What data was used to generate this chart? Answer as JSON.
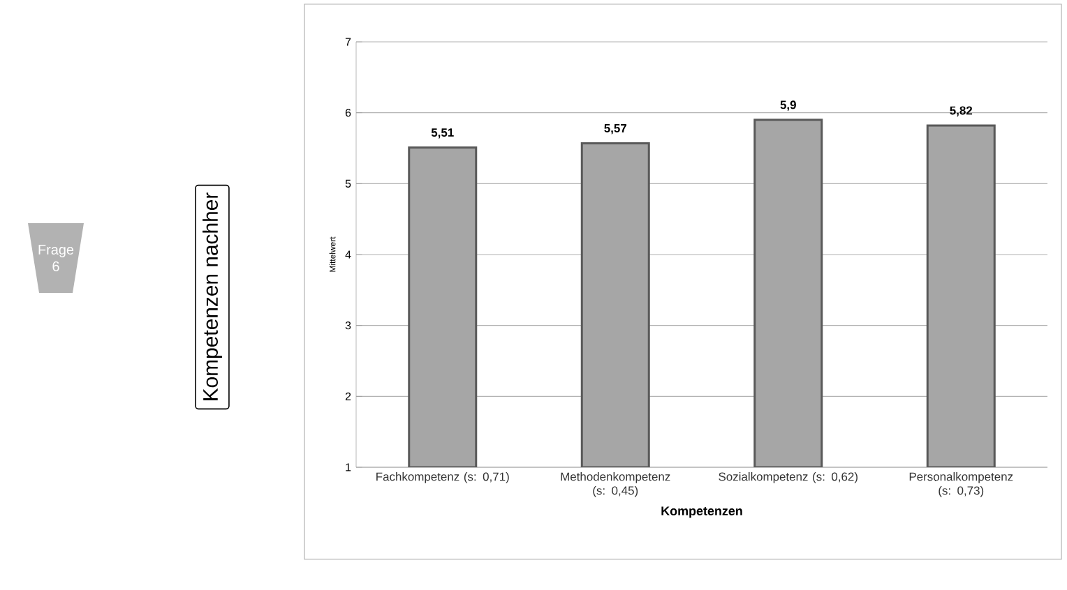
{
  "chart_data": {
    "type": "bar",
    "title": "Kompetenzen nachher",
    "xlabel": "Kompetenzen",
    "ylabel": "Mittelwert",
    "annotations": [
      "Frage 6"
    ],
    "categories": [
      "Fachkompetenz (s: 0,71)",
      "Methodenkompetenz (s: 0,45)",
      "Sozialkompetenz (s: 0,62)",
      "Personalkompetenz (s: 0,73)"
    ],
    "values": [
      5.51,
      5.57,
      5.9,
      5.82
    ],
    "value_labels": [
      "5,51",
      "5,57",
      "5,9",
      "5,82"
    ],
    "color": "#a6a6a6",
    "ylim": [
      1,
      7
    ],
    "yticks": [
      1,
      2,
      3,
      4,
      5,
      6,
      7
    ],
    "grid": "y"
  }
}
